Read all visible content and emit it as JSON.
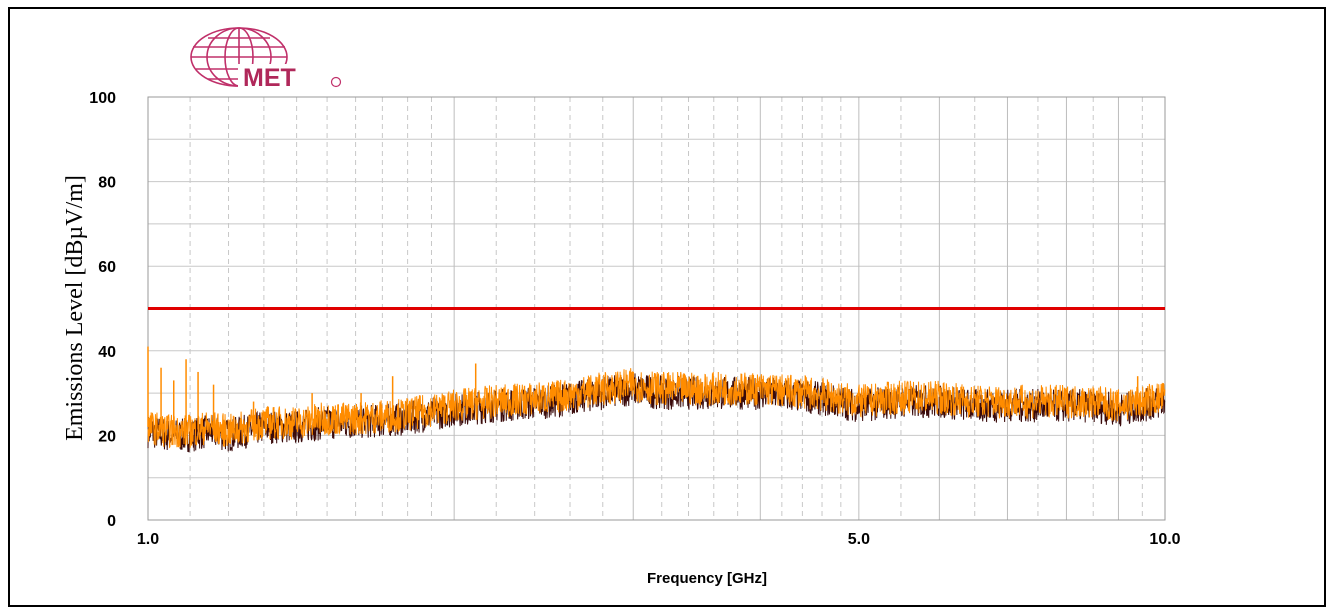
{
  "logo": {
    "text": "MET",
    "color": "#b0285a"
  },
  "chart_data": {
    "type": "line",
    "title": "",
    "xlabel": "Frequency [GHz]",
    "ylabel": "Emissions Level [dBµV/m]",
    "x_scale": "log",
    "xlim": [
      1.0,
      10.0
    ],
    "ylim": [
      0,
      100
    ],
    "x_ticks": [
      {
        "value": 1.0,
        "label": "1.0"
      },
      {
        "value": 5.0,
        "label": "5.0"
      },
      {
        "value": 10.0,
        "label": "10.0"
      }
    ],
    "y_ticks": [
      {
        "value": 0,
        "label": "0"
      },
      {
        "value": 20,
        "label": "20"
      },
      {
        "value": 40,
        "label": "40"
      },
      {
        "value": 60,
        "label": "60"
      },
      {
        "value": 80,
        "label": "80"
      },
      {
        "value": 100,
        "label": "100"
      }
    ],
    "grid": true,
    "colors": {
      "limit": "#e00000",
      "peak": "#ff8c00",
      "average": "#3a0a0a"
    },
    "limit_line": {
      "value": 50
    },
    "series": [
      {
        "x": [
          1.0,
          1.05,
          1.1,
          1.15,
          1.2,
          1.3,
          1.4,
          1.5,
          1.6,
          1.8,
          2.0,
          2.2,
          2.5,
          2.8,
          3.0,
          3.2,
          3.5,
          4.0,
          4.5,
          5.0,
          5.5,
          6.0,
          6.5,
          7.0,
          7.5,
          8.0,
          8.5,
          9.0,
          9.5,
          10.0
        ],
        "y": [
          21,
          20,
          20,
          21,
          20,
          22,
          22,
          23,
          23,
          24,
          26,
          27,
          28,
          30,
          31,
          30,
          30,
          30,
          29,
          27,
          28,
          28,
          27,
          27,
          27,
          27,
          27,
          26,
          27,
          28
        ]
      },
      {
        "x": [
          1.0,
          1.05,
          1.1,
          1.15,
          1.2,
          1.3,
          1.4,
          1.5,
          1.6,
          1.8,
          2.0,
          2.2,
          2.5,
          2.8,
          3.0,
          3.2,
          3.5,
          4.0,
          4.5,
          5.0,
          5.5,
          6.0,
          6.5,
          7.0,
          7.5,
          8.0,
          8.5,
          9.0,
          9.5,
          10.0
        ],
        "y": [
          22,
          21,
          21,
          22,
          21,
          23,
          23,
          24,
          24,
          25,
          27,
          28,
          29,
          31,
          32,
          31,
          31,
          31,
          30,
          28,
          29,
          29,
          28,
          28,
          28,
          28,
          28,
          27,
          28,
          29
        ]
      }
    ],
    "spikes": [
      {
        "x": 1.0,
        "y": 41
      },
      {
        "x": 1.03,
        "y": 36
      },
      {
        "x": 1.06,
        "y": 33
      },
      {
        "x": 1.09,
        "y": 38
      },
      {
        "x": 1.12,
        "y": 35
      },
      {
        "x": 1.16,
        "y": 32
      },
      {
        "x": 1.27,
        "y": 28
      },
      {
        "x": 1.45,
        "y": 30
      },
      {
        "x": 1.62,
        "y": 30
      },
      {
        "x": 1.74,
        "y": 34
      },
      {
        "x": 2.1,
        "y": 37
      },
      {
        "x": 3.0,
        "y": 35
      },
      {
        "x": 9.4,
        "y": 34
      }
    ]
  }
}
